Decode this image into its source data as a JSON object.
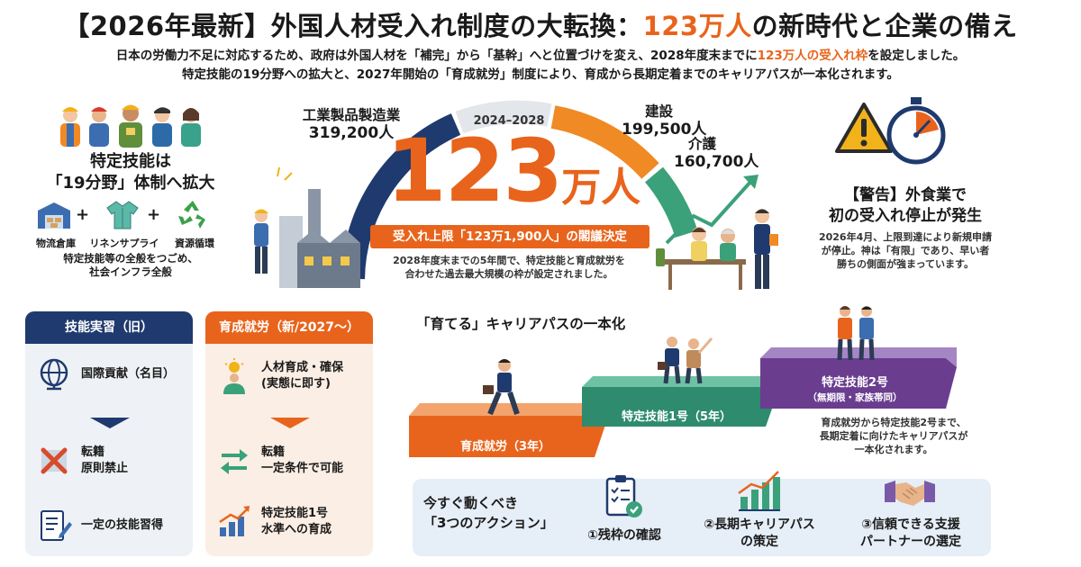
{
  "header": {
    "title_prefix": "【2026年最新】外国人材受入れ制度の大転換：",
    "title_highlight": "123万人",
    "title_suffix": "の新時代と企業の備え",
    "intro_line1_a": "日本の労働力不足に対応するため、政府は外国人材を「補完」から「基幹」へと位置づけを変え、2028年度末までに",
    "intro_line1_hl": "123万人の受入れ枠",
    "intro_line1_b": "を設定しました。",
    "intro_line2": "特定技能の19分野への拡大と、2027年開始の「育成就労」制度により、育成から長期定着までのキャリアパスが一本化されます。"
  },
  "left_top": {
    "title_line1": "特定技能は",
    "title_line2": "「19分野」体制へ拡大",
    "icons": [
      {
        "icon": "warehouse-icon",
        "label": "物流倉庫"
      },
      {
        "icon": "shirt-icon",
        "label": "リネンサプライ"
      },
      {
        "icon": "recycle-icon",
        "label": "資源循環"
      }
    ],
    "foot_line1": "特定技能等の全般をつごめ、",
    "foot_line2": "社会インフラ全般"
  },
  "center": {
    "period": "2024–2028",
    "big_number": "123",
    "big_unit": "万人",
    "cap_label": "受入れ上限「123万1,900人」の閣議決定",
    "note_line1": "2028年度末までの5年間で、特定技能と育成就労を",
    "note_line2": "合わせた過去最大規模の枠が設定されました。",
    "sectors": [
      {
        "name": "工業製品製造業",
        "value": "319,200人"
      },
      {
        "name": "建設",
        "value": "199,500人"
      },
      {
        "name": "介護",
        "value": "160,700人"
      }
    ]
  },
  "warning": {
    "title_line1": "【警告】外食業で",
    "title_line2": "初の受入れ停止が発生",
    "body_line1": "2026年4月、上限到達により新規申請",
    "body_line2": "が停止。神は「有限」であり、早い者",
    "body_line3": "勝ちの側面が強まっています。"
  },
  "old_panel": {
    "header": "技能実習（旧）",
    "items": [
      {
        "icon": "globe-icon",
        "label_line1": "国際貢献（名目）",
        "label_line2": ""
      },
      {
        "icon": "no-transfer-icon",
        "label_line1": "転籍",
        "label_line2": "原則禁止"
      },
      {
        "icon": "document-pen-icon",
        "label_line1": "一定の技能習得",
        "label_line2": ""
      }
    ]
  },
  "new_panel": {
    "header": "育成就労（新/2027〜）",
    "items": [
      {
        "icon": "person-idea-icon",
        "label_line1": "人材育成・確保",
        "label_line2": "(実態に即す)"
      },
      {
        "icon": "transfer-arrows-icon",
        "label_line1": "転籍",
        "label_line2": "一定条件で可能"
      },
      {
        "icon": "growth-chart-icon",
        "label_line1": "特定技能1号",
        "label_line2": "水準への育成"
      }
    ]
  },
  "career": {
    "title": "「育てる」キャリアパスの一本化",
    "steps": [
      {
        "label": "育成就労（3年）",
        "sub": ""
      },
      {
        "label": "特定技能1号（5年）",
        "sub": ""
      },
      {
        "label": "特定技能2号",
        "sub": "（無期限・家族帯同）"
      }
    ],
    "note_line1": "育成就労から特定技能2号まで、",
    "note_line2": "長期定着に向けたキャリアパスが",
    "note_line3": "一本化されます。"
  },
  "actions": {
    "title_line1": "今すぐ動くべき",
    "title_line2": "「3つのアクション」",
    "items": [
      {
        "icon": "checklist-icon",
        "label_line1": "①残枠の確認",
        "label_line2": ""
      },
      {
        "icon": "bar-chart-icon",
        "label_line1": "②長期キャリアパス",
        "label_line2": "の策定"
      },
      {
        "icon": "handshake-icon",
        "label_line1": "③信頼できる支援",
        "label_line2": "パートナーの選定"
      }
    ]
  },
  "colors": {
    "orange": "#e8641c",
    "navy": "#1f3a6e",
    "green": "#2e8b6e",
    "purple": "#6a3d8f"
  }
}
